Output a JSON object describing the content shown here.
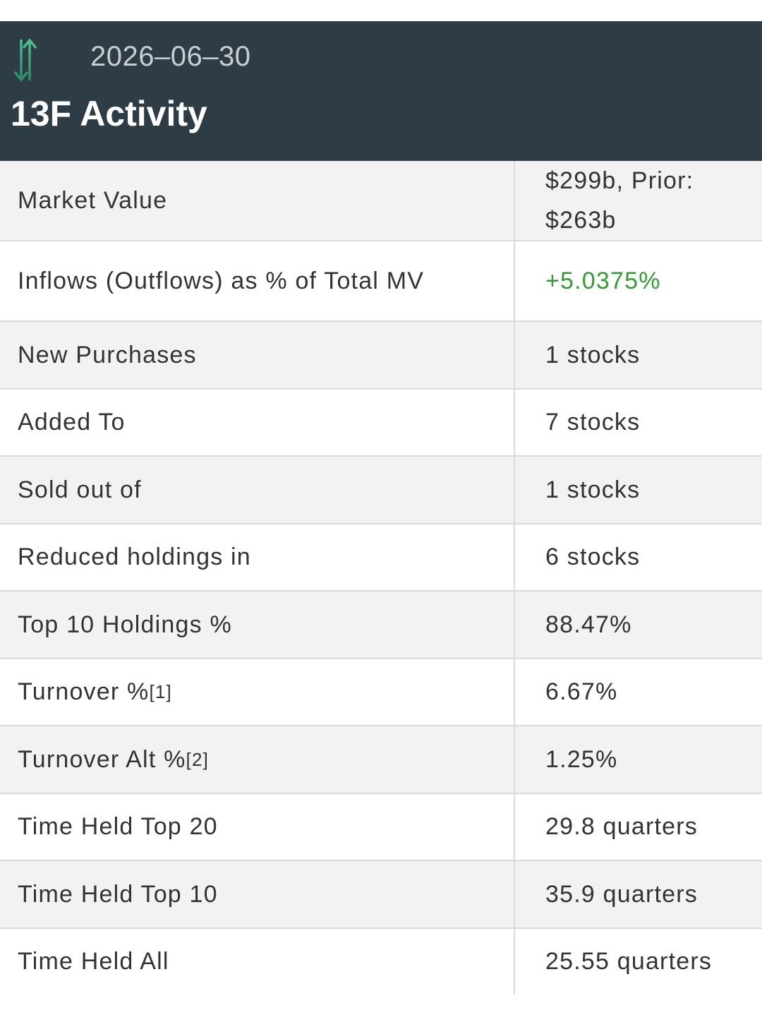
{
  "header": {
    "date": "2026–06–30",
    "title": "13F Activity"
  },
  "table": {
    "rows": [
      {
        "label": "Market Value",
        "value": "$299b, Prior: $263b"
      },
      {
        "label": "Inflows (Outflows) as % of Total MV",
        "value": "+5.0375%"
      },
      {
        "label": "New Purchases",
        "value": "1 stocks"
      },
      {
        "label": "Added To",
        "value": "7 stocks"
      },
      {
        "label": "Sold out of",
        "value": "1 stocks"
      },
      {
        "label": "Reduced holdings in",
        "value": "6 stocks"
      },
      {
        "label": "Top 10 Holdings %",
        "value": "88.47%"
      },
      {
        "label": "Turnover %",
        "note": "[1]",
        "value": "6.67%"
      },
      {
        "label": "Turnover Alt %",
        "note": "[2]",
        "value": "1.25%"
      },
      {
        "label": "Time Held Top 20",
        "value": "29.8 quarters"
      },
      {
        "label": "Time Held Top 10",
        "value": "35.9 quarters"
      },
      {
        "label": "Time Held All",
        "value": "25.55 quarters"
      }
    ]
  }
}
